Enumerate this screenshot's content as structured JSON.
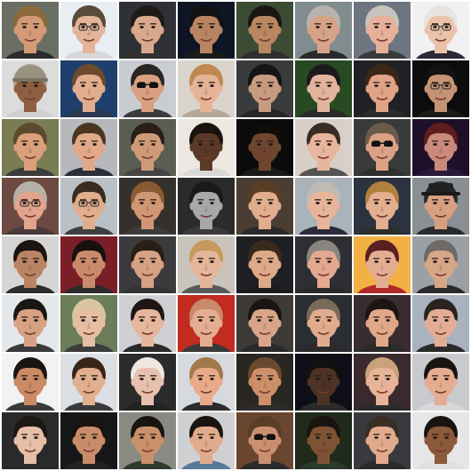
{
  "grid": {
    "rows": 8,
    "cols": 8,
    "tiles": [
      {
        "bg": "#6b6e63",
        "skin": "#d49a78",
        "hair": "#8a6a3a",
        "shirt": "#2c2c2c",
        "accessory": "none"
      },
      {
        "bg": "#e9eef3",
        "skin": "#e2b49a",
        "hair": "#5a4a3c",
        "shirt": "#d8d8d8",
        "accessory": "glasses"
      },
      {
        "bg": "#2f3136",
        "skin": "#d8a98c",
        "hair": "#1e1a17",
        "shirt": "#303030",
        "accessory": "none"
      },
      {
        "bg": "#0e1524",
        "skin": "#b98462",
        "hair": "#111111",
        "shirt": "#1a1a1a",
        "accessory": "none"
      },
      {
        "bg": "#3c4b33",
        "skin": "#b98762",
        "hair": "#1a1612",
        "shirt": "#2e2e2e",
        "accessory": "none"
      },
      {
        "bg": "#808c8e",
        "skin": "#d7a388",
        "hair": "#b7b2ab",
        "shirt": "#2a2a2a",
        "accessory": "none"
      },
      {
        "bg": "#6d7580",
        "skin": "#e7b09a",
        "hair": "#c8c2bb",
        "shirt": "#3a3a3a",
        "accessory": "none"
      },
      {
        "bg": "#f1f1f1",
        "skin": "#eac2aa",
        "hair": "#e8e4df",
        "shirt": "#2b2b38",
        "accessory": "glasses"
      },
      {
        "bg": "#dcdcdc",
        "skin": "#8d5e3f",
        "hair": "#a59f8f",
        "shirt": "#d0d0d0",
        "accessory": "cap"
      },
      {
        "bg": "#1f3f6e",
        "skin": "#e2ad8e",
        "hair": "#6b4a2e",
        "shirt": "#2a3950",
        "accessory": "none"
      },
      {
        "bg": "#c9cdd2",
        "skin": "#d8a080",
        "hair": "#2a2624",
        "shirt": "#3b3b3b",
        "accessory": "sunglasses"
      },
      {
        "bg": "#d9d5cc",
        "skin": "#e5b497",
        "hair": "#c08850",
        "shirt": "#b8a89a",
        "accessory": "none"
      },
      {
        "bg": "#3a3b3d",
        "skin": "#c79b80",
        "hair": "#141414",
        "shirt": "#262626",
        "accessory": "none"
      },
      {
        "bg": "#274a22",
        "skin": "#e2b49e",
        "hair": "#1d1a1e",
        "shirt": "#2a2a2a",
        "accessory": "none"
      },
      {
        "bg": "#212125",
        "skin": "#e0a386",
        "hair": "#3c2618",
        "shirt": "#2a2a2a",
        "accessory": "none"
      },
      {
        "bg": "#0c0c0c",
        "skin": "#c49474",
        "hair": "#121212",
        "shirt": "#1b1b1b",
        "accessory": "glasses"
      },
      {
        "bg": "#7a7c54",
        "skin": "#d9a07a",
        "hair": "#5c4a2e",
        "shirt": "#3c3c3c",
        "accessory": "none"
      },
      {
        "bg": "#b7b8bc",
        "skin": "#e0aa8a",
        "hair": "#4a3620",
        "shirt": "#2b2f3a",
        "accessory": "none"
      },
      {
        "bg": "#5a5e52",
        "skin": "#cf9a78",
        "hair": "#2a1f18",
        "shirt": "#444444",
        "accessory": "none"
      },
      {
        "bg": "#ece7e1",
        "skin": "#5a3a27",
        "hair": "#1b120d",
        "shirt": "#d8d8d8",
        "accessory": "none"
      },
      {
        "bg": "#0b0b0b",
        "skin": "#6e4630",
        "hair": "#0f0c0a",
        "shirt": "#1a1a1a",
        "accessory": "none"
      },
      {
        "bg": "#d8d0c8",
        "skin": "#e7b69c",
        "hair": "#3a2c22",
        "shirt": "#555555",
        "accessory": "none"
      },
      {
        "bg": "#3a3a3a",
        "skin": "#dba184",
        "hair": "#6a5a4a",
        "shirt": "#2f2f2f",
        "accessory": "sunglasses"
      },
      {
        "bg": "#1e1028",
        "skin": "#c98a7c",
        "hair": "#5c1e1e",
        "shirt": "#2c183a",
        "accessory": "none"
      },
      {
        "bg": "#6c4a42",
        "skin": "#e1a48c",
        "hair": "#b6b0a8",
        "shirt": "#4a3a3a",
        "accessory": "glasses"
      },
      {
        "bg": "#b9c1c7",
        "skin": "#e1ad8f",
        "hair": "#3a2c20",
        "shirt": "#3f3f3f",
        "accessory": "glasses"
      },
      {
        "bg": "#34302b",
        "skin": "#cf9774",
        "hair": "#8a5a32",
        "shirt": "#3c3c3c",
        "accessory": "none"
      },
      {
        "bg": "#2b2b2b",
        "skin": "#a8a8a8",
        "hair": "#1a1a1a",
        "shirt": "#3a3a3a",
        "accessory": "none"
      },
      {
        "bg": "#4a3e34",
        "skin": "#e0ad8f",
        "hair": "#5a3e24",
        "shirt": "#2a2a2a",
        "accessory": "none"
      },
      {
        "bg": "#aab2ba",
        "skin": "#e8b49a",
        "hair": "#c0bab2",
        "shirt": "#2a2a3a",
        "accessory": "none"
      },
      {
        "bg": "#2c3340",
        "skin": "#e2b090",
        "hair": "#b2803e",
        "shirt": "#2c2c2c",
        "accessory": "none"
      },
      {
        "bg": "#8a8f94",
        "skin": "#d6a080",
        "hair": "#2a2a2a",
        "shirt": "#2a2a2a",
        "accessory": "hat"
      },
      {
        "bg": "#d5d5d5",
        "skin": "#b98463",
        "hair": "#1b1410",
        "shirt": "#2c2c2c",
        "accessory": "none"
      },
      {
        "bg": "#7a1f28",
        "skin": "#c98b6a",
        "hair": "#16110e",
        "shirt": "#2a2a2a",
        "accessory": "none"
      },
      {
        "bg": "#3b3b3e",
        "skin": "#d6a283",
        "hair": "#2a1f17",
        "shirt": "#333333",
        "accessory": "none"
      },
      {
        "bg": "#c8c3bb",
        "skin": "#e4b59a",
        "hair": "#c79a5c",
        "shirt": "#5a5a5a",
        "accessory": "none"
      },
      {
        "bg": "#1d1f22",
        "skin": "#dda988",
        "hair": "#3a2a1c",
        "shirt": "#1c1c1c",
        "accessory": "none"
      },
      {
        "bg": "#2d2f34",
        "skin": "#e2a990",
        "hair": "#8a8580",
        "shirt": "#2a2a2a",
        "accessory": "none"
      },
      {
        "bg": "#f3b043",
        "skin": "#e4ad92",
        "hair": "#5a1f22",
        "shirt": "#b02a2a",
        "accessory": "none"
      },
      {
        "bg": "#9aa0a4",
        "skin": "#d7a588",
        "hair": "#6e6a66",
        "shirt": "#2a2a2a",
        "accessory": "none"
      },
      {
        "bg": "#e4e8ea",
        "skin": "#d7a183",
        "hair": "#1a1614",
        "shirt": "#3a3a3a",
        "accessory": "none"
      },
      {
        "bg": "#6c7d5a",
        "skin": "#e6bea2",
        "hair": "#d8c6a0",
        "shirt": "#3c3c3c",
        "accessory": "none"
      },
      {
        "bg": "#cfd0d3",
        "skin": "#e6b69c",
        "hair": "#1e1612",
        "shirt": "#2a2a2a",
        "accessory": "none"
      },
      {
        "bg": "#c22b1f",
        "skin": "#e4ad92",
        "hair": "#c78a6a",
        "shirt": "#3a3a3a",
        "accessory": "none"
      },
      {
        "bg": "#3e3b36",
        "skin": "#d9a589",
        "hair": "#1a1512",
        "shirt": "#2a2a2a",
        "accessory": "none"
      },
      {
        "bg": "#2a2d31",
        "skin": "#e1ac8e",
        "hair": "#7a6a5a",
        "shirt": "#2a2a2a",
        "accessory": "none"
      },
      {
        "bg": "#3a2c30",
        "skin": "#e0a888",
        "hair": "#1d1512",
        "shirt": "#2a2a2a",
        "accessory": "none"
      },
      {
        "bg": "#aab2c0",
        "skin": "#e2ad94",
        "hair": "#2a2320",
        "shirt": "#2b2b2b",
        "accessory": "none"
      },
      {
        "bg": "#f2f2f2",
        "skin": "#c98a64",
        "hair": "#1a1512",
        "shirt": "#3a3a3a",
        "accessory": "none"
      },
      {
        "bg": "#dce0e4",
        "skin": "#e1ae8f",
        "hair": "#3a2616",
        "shirt": "#3a3a3a",
        "accessory": "none"
      },
      {
        "bg": "#2b2b2b",
        "skin": "#e7c0ae",
        "hair": "#efe8e2",
        "shirt": "#222222",
        "accessory": "none"
      },
      {
        "bg": "#d6dadf",
        "skin": "#e8aa88",
        "hair": "#a07a4a",
        "shirt": "#2c2c2c",
        "accessory": "none"
      },
      {
        "bg": "#2a2622",
        "skin": "#cc8f6a",
        "hair": "#6a4a2e",
        "shirt": "#2c2c2c",
        "accessory": "none"
      },
      {
        "bg": "#0e0e18",
        "skin": "#4e3224",
        "hair": "#111111",
        "shirt": "#2a2a2a",
        "accessory": "none"
      },
      {
        "bg": "#3a2a2e",
        "skin": "#e8b398",
        "hair": "#caa27a",
        "shirt": "#2c2c2c",
        "accessory": "none"
      },
      {
        "bg": "#c8cace",
        "skin": "#e4ad92",
        "hair": "#1a1410",
        "shirt": "#d8d8d8",
        "accessory": "none"
      },
      {
        "bg": "#2a2a2a",
        "skin": "#e7bfa8",
        "hair": "#1c1814",
        "shirt": "#2a2a2a",
        "accessory": "none"
      },
      {
        "bg": "#151718",
        "skin": "#c98c6a",
        "hair": "#1a120e",
        "shirt": "#222222",
        "accessory": "none"
      },
      {
        "bg": "#8a8a84",
        "skin": "#c9906c",
        "hair": "#1a1410",
        "shirt": "#2f3a2a",
        "accessory": "none"
      },
      {
        "bg": "#cfd0d2",
        "skin": "#e0ab8c",
        "hair": "#1a1410",
        "shirt": "#5a7a9a",
        "accessory": "none"
      },
      {
        "bg": "#6a4630",
        "skin": "#c99070",
        "hair": "#5a3e28",
        "shirt": "#2a2a2a",
        "accessory": "sunglasses"
      },
      {
        "bg": "#1f2a1a",
        "skin": "#7e5234",
        "hair": "#1a1410",
        "shirt": "#2b3a2a",
        "accessory": "none"
      },
      {
        "bg": "#3a3a3e",
        "skin": "#e2aa8c",
        "hair": "#3a2e26",
        "shirt": "#2a2a2a",
        "accessory": "none"
      },
      {
        "bg": "#e6e6e6",
        "skin": "#8a5a3a",
        "hair": "#1a1410",
        "shirt": "#e0e0e0",
        "accessory": "none"
      }
    ]
  }
}
